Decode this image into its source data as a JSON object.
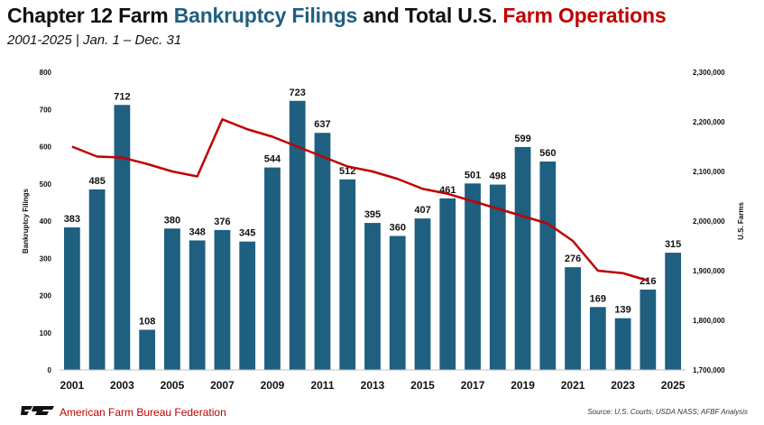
{
  "header": {
    "title_part1": "Chapter 12 Farm ",
    "title_part2": "Bankruptcy Filings",
    "title_part3": " and Total U.S. ",
    "title_part4": "Farm Operations",
    "subtitle": "2001-2025 | Jan. 1 – Dec. 31"
  },
  "footer": {
    "org": "American Farm Bureau Federation",
    "source": "Source: U.S. Courts; USDA NASS; AFBF Analysis"
  },
  "colors": {
    "bar": "#1f5f80",
    "line": "#c00000",
    "title_blue": "#1f5f80",
    "title_red": "#c00000"
  },
  "chart_data": {
    "type": "bar",
    "title": "Chapter 12 Farm Bankruptcy Filings and Total U.S. Farm Operations",
    "subtitle": "2001-2025 | Jan. 1 – Dec. 31",
    "xlabel": "",
    "ylabel": "Bankruptcy Filings",
    "y2label": "U.S. Farms",
    "ylim": [
      0,
      800
    ],
    "y2lim": [
      1700000,
      2300000
    ],
    "yticks": [
      "0",
      "100",
      "200",
      "300",
      "400",
      "500",
      "600",
      "700",
      "800"
    ],
    "y2ticks": [
      "1,700,000",
      "1,800,000",
      "1,900,000",
      "2,000,000",
      "2,100,000",
      "2,200,000",
      "2,300,000"
    ],
    "categories": [
      "2001",
      "2002",
      "2003",
      "2004",
      "2005",
      "2006",
      "2007",
      "2008",
      "2009",
      "2010",
      "2011",
      "2012",
      "2013",
      "2014",
      "2015",
      "2016",
      "2017",
      "2018",
      "2019",
      "2020",
      "2021",
      "2022",
      "2023",
      "2024",
      "2025"
    ],
    "xtick_labels": [
      "2001",
      "2003",
      "2005",
      "2007",
      "2009",
      "2011",
      "2013",
      "2015",
      "2017",
      "2019",
      "2021",
      "2023",
      "2025"
    ],
    "series": [
      {
        "name": "Chapter 12 Bankruptcy Filings",
        "axis": "left",
        "type": "bar",
        "values": [
          383,
          485,
          712,
          108,
          380,
          348,
          376,
          345,
          544,
          723,
          637,
          512,
          395,
          360,
          407,
          461,
          501,
          498,
          599,
          560,
          276,
          169,
          139,
          216,
          315
        ],
        "labels": [
          "383",
          "485",
          "712",
          "108",
          "380",
          "348",
          "376",
          "345",
          "544",
          "723",
          "637",
          "512",
          "395",
          "360",
          "407",
          "461",
          "501",
          "498",
          "599",
          "560",
          "276",
          "169",
          "139",
          "216",
          "315"
        ]
      },
      {
        "name": "Total U.S. Farm Operations",
        "axis": "right",
        "type": "line",
        "x": [
          "2001",
          "2002",
          "2003",
          "2004",
          "2005",
          "2006",
          "2007",
          "2008",
          "2009",
          "2010",
          "2011",
          "2012",
          "2013",
          "2014",
          "2015",
          "2016",
          "2017",
          "2018",
          "2019",
          "2020",
          "2021",
          "2022",
          "2023",
          "2024"
        ],
        "values": [
          2150000,
          2130000,
          2128000,
          2115000,
          2100000,
          2090000,
          2205000,
          2185000,
          2170000,
          2150000,
          2130000,
          2110000,
          2100000,
          2085000,
          2065000,
          2055000,
          2040000,
          2025000,
          2010000,
          1995000,
          1960000,
          1900000,
          1895000,
          1880000
        ]
      }
    ]
  }
}
